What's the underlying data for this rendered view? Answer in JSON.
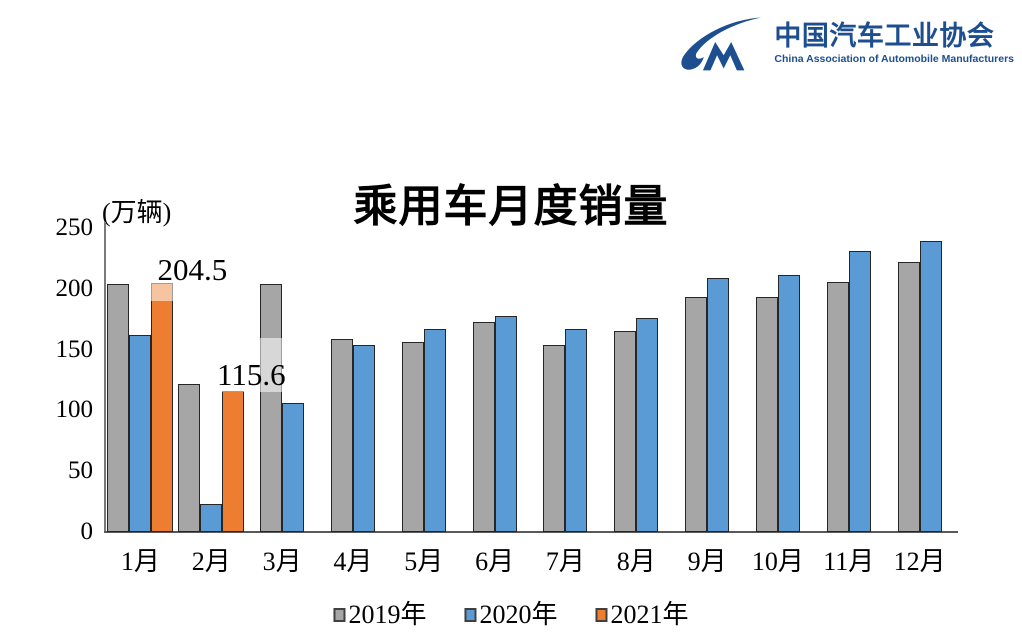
{
  "logo": {
    "org_cn": "中国汽车工业协会",
    "org_en": "China Association of Automobile Manufacturers",
    "brand_color": "#1d4e8f",
    "mark_icon": "cam-cm-swoosh"
  },
  "chart_data": {
    "type": "bar",
    "title": "乘用车月度销量",
    "unit_label": "(万辆)",
    "categories": [
      "1月",
      "2月",
      "3月",
      "4月",
      "5月",
      "6月",
      "7月",
      "8月",
      "9月",
      "10月",
      "11月",
      "12月"
    ],
    "series": [
      {
        "name": "2019年",
        "color": "#A6A6A6",
        "values": [
          204,
          122,
          204,
          159,
          156,
          173,
          154,
          165,
          193,
          193,
          206,
          222
        ]
      },
      {
        "name": "2020年",
        "color": "#5B9BD5",
        "values": [
          162,
          23,
          106,
          154,
          167,
          178,
          167,
          176,
          209,
          211,
          231,
          239
        ]
      },
      {
        "name": "2021年",
        "color": "#ED7D31",
        "values": [
          204.5,
          115.6,
          null,
          null,
          null,
          null,
          null,
          null,
          null,
          null,
          null,
          null
        ]
      }
    ],
    "annotations": [
      {
        "month": "1月",
        "series": "2021年",
        "text": "204.5"
      },
      {
        "month": "2月",
        "series": "2021年",
        "text": "115.6"
      }
    ],
    "ylim": [
      0,
      250
    ],
    "yticks": [
      0,
      50,
      100,
      150,
      200,
      250
    ],
    "grid": false,
    "legend_position": "bottom",
    "bar_outline_color": "#262626",
    "axis_color": "#7a7a7a"
  }
}
